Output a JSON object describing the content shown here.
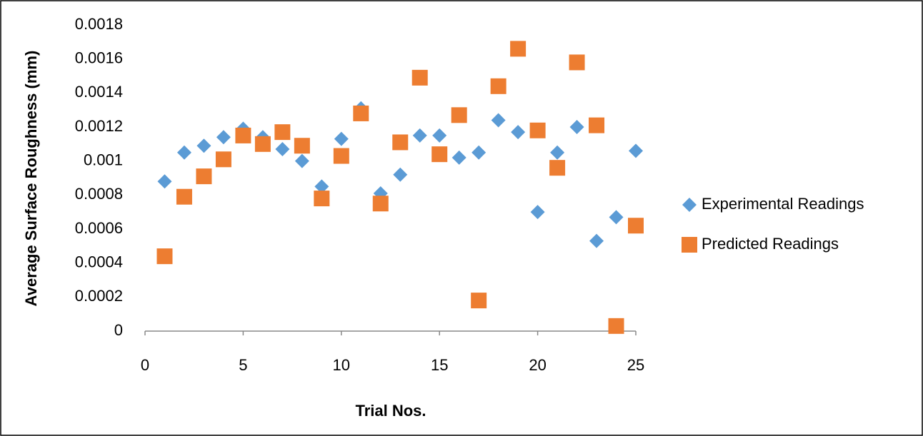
{
  "chart_data": {
    "type": "scatter",
    "x_label": "Trial Nos.",
    "y_label": "Average Surface Roughness (mm)",
    "x": [
      1,
      2,
      3,
      4,
      5,
      6,
      7,
      8,
      9,
      10,
      11,
      12,
      13,
      14,
      15,
      16,
      17,
      18,
      19,
      20,
      21,
      22,
      23,
      24,
      25
    ],
    "series": [
      {
        "name": "Experimental Readings",
        "color": "#5B9BD5",
        "marker": "diamond",
        "values": [
          0.00088,
          0.00105,
          0.00109,
          0.00114,
          0.00119,
          0.00114,
          0.00107,
          0.001,
          0.00085,
          0.00113,
          0.00131,
          0.00081,
          0.00092,
          0.00115,
          0.00115,
          0.00102,
          0.00105,
          0.00124,
          0.00117,
          0.0007,
          0.00105,
          0.0012,
          0.00053,
          0.00067,
          0.00106
        ]
      },
      {
        "name": "Predicted Readings",
        "color": "#ED7D31",
        "marker": "square",
        "values": [
          0.00044,
          0.00079,
          0.00091,
          0.00101,
          0.00115,
          0.0011,
          0.00117,
          0.00109,
          0.00078,
          0.00103,
          0.00128,
          0.00075,
          0.00111,
          0.00149,
          0.00104,
          0.00127,
          0.00018,
          0.00144,
          0.00166,
          0.00118,
          0.00096,
          0.00158,
          0.00121,
          3e-05,
          0.00062
        ]
      }
    ],
    "xlim": [
      0,
      25
    ],
    "xticks": [
      0,
      5,
      10,
      15,
      20,
      25
    ],
    "ylim": [
      0,
      0.0018
    ],
    "yticks": [
      0,
      0.0002,
      0.0004,
      0.0006,
      0.0008,
      0.001,
      0.0012,
      0.0014,
      0.0016,
      0.0018
    ],
    "grid": false,
    "legend": "right"
  }
}
